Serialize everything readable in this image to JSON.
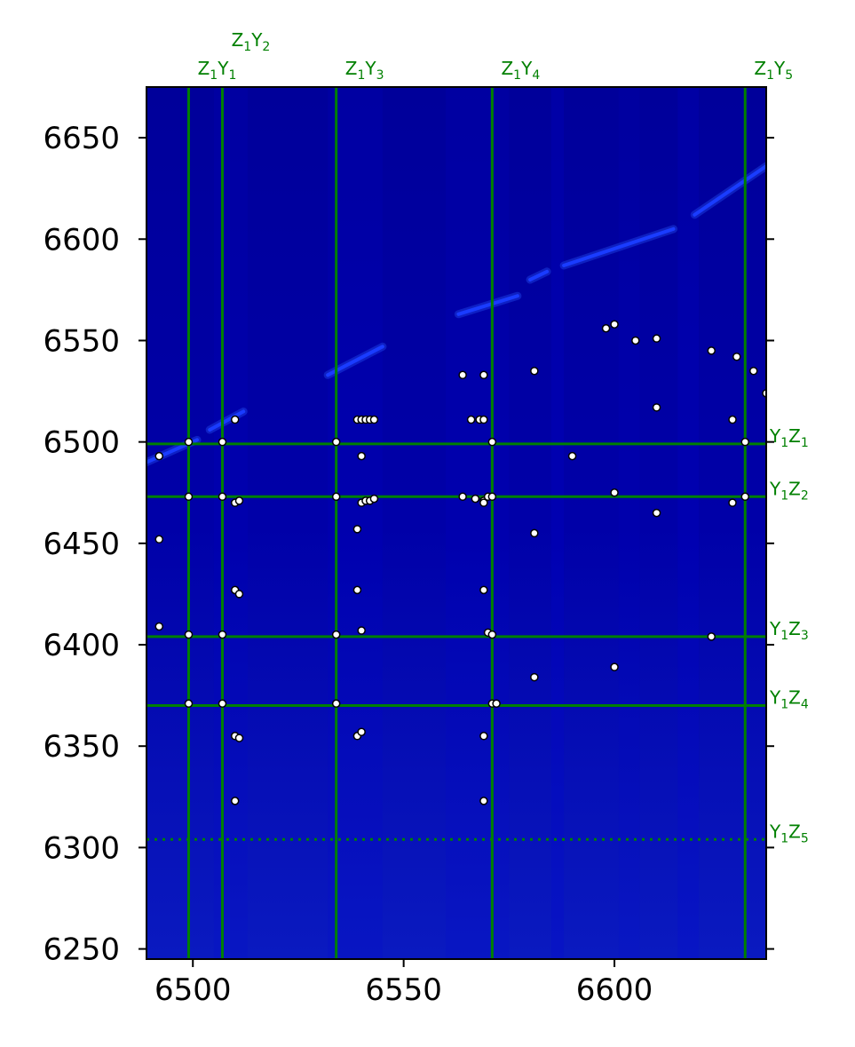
{
  "colors": {
    "background": "#00009a",
    "reference_line": "#008000",
    "point_fill": "#ffffff",
    "point_stroke": "#000000",
    "diagonal": "#1a3cff"
  },
  "chart_data": {
    "type": "heatmap",
    "xlim": [
      6489,
      6636
    ],
    "ylim": [
      6245,
      6675
    ],
    "x_ticks": [
      6500,
      6550,
      6600
    ],
    "y_ticks": [
      6250,
      6300,
      6350,
      6400,
      6450,
      6500,
      6550,
      6600,
      6650
    ],
    "vertical_lines": [
      {
        "label": "Z",
        "sub": "1",
        "label2": "Y",
        "sub2": "1",
        "x": 6499,
        "style": "solid",
        "row": 1
      },
      {
        "label": "Z",
        "sub": "1",
        "label2": "Y",
        "sub2": "2",
        "x": 6507,
        "style": "solid",
        "row": 2
      },
      {
        "label": "Z",
        "sub": "1",
        "label2": "Y",
        "sub2": "3",
        "x": 6534,
        "style": "solid",
        "row": 1
      },
      {
        "label": "Z",
        "sub": "1",
        "label2": "Y",
        "sub2": "4",
        "x": 6571,
        "style": "solid",
        "row": 1
      },
      {
        "label": "Z",
        "sub": "1",
        "label2": "Y",
        "sub2": "5",
        "x": 6631,
        "style": "solid",
        "row": 1
      }
    ],
    "horizontal_lines": [
      {
        "label": "Y",
        "sub": "1",
        "label2": "Z",
        "sub2": "1",
        "y": 6499,
        "style": "solid"
      },
      {
        "label": "Y",
        "sub": "1",
        "label2": "Z",
        "sub2": "2",
        "y": 6473,
        "style": "solid"
      },
      {
        "label": "Y",
        "sub": "1",
        "label2": "Z",
        "sub2": "3",
        "y": 6404,
        "style": "solid"
      },
      {
        "label": "Y",
        "sub": "1",
        "label2": "Z",
        "sub2": "4",
        "y": 6370,
        "style": "solid"
      },
      {
        "label": "Y",
        "sub": "1",
        "label2": "Z",
        "sub2": "5",
        "y": 6304,
        "style": "dotted"
      }
    ],
    "diagonal_segments": [
      [
        6489,
        6490,
        6501,
        6501
      ],
      [
        6504,
        6506,
        6512,
        6515
      ],
      [
        6532,
        6533,
        6545,
        6547
      ],
      [
        6563,
        6563,
        6577,
        6572
      ],
      [
        6580,
        6580,
        6584,
        6584
      ],
      [
        6588,
        6587,
        6614,
        6605
      ],
      [
        6619,
        6612,
        6636,
        6636
      ]
    ],
    "points": [
      [
        6492,
        6493
      ],
      [
        6492,
        6452
      ],
      [
        6492,
        6409
      ],
      [
        6499,
        6500
      ],
      [
        6499,
        6473
      ],
      [
        6499,
        6405
      ],
      [
        6499,
        6371
      ],
      [
        6507,
        6500
      ],
      [
        6507,
        6473
      ],
      [
        6507,
        6405
      ],
      [
        6507,
        6371
      ],
      [
        6510,
        6511
      ],
      [
        6510,
        6470
      ],
      [
        6511,
        6471
      ],
      [
        6510,
        6427
      ],
      [
        6511,
        6425
      ],
      [
        6510,
        6355
      ],
      [
        6511,
        6354
      ],
      [
        6510,
        6323
      ],
      [
        6534,
        6500
      ],
      [
        6534,
        6473
      ],
      [
        6534,
        6405
      ],
      [
        6534,
        6371
      ],
      [
        6539,
        6511
      ],
      [
        6540,
        6511
      ],
      [
        6541,
        6511
      ],
      [
        6542,
        6511
      ],
      [
        6543,
        6511
      ],
      [
        6540,
        6493
      ],
      [
        6540,
        6470
      ],
      [
        6541,
        6471
      ],
      [
        6542,
        6471
      ],
      [
        6543,
        6472
      ],
      [
        6539,
        6457
      ],
      [
        6539,
        6427
      ],
      [
        6540,
        6407
      ],
      [
        6539,
        6355
      ],
      [
        6540,
        6357
      ],
      [
        6564,
        6533
      ],
      [
        6566,
        6511
      ],
      [
        6568,
        6511
      ],
      [
        6569,
        6511
      ],
      [
        6569,
        6533
      ],
      [
        6571,
        6500
      ],
      [
        6564,
        6473
      ],
      [
        6567,
        6472
      ],
      [
        6569,
        6471
      ],
      [
        6569,
        6470
      ],
      [
        6570,
        6473
      ],
      [
        6571,
        6473
      ],
      [
        6569,
        6427
      ],
      [
        6570,
        6406
      ],
      [
        6571,
        6405
      ],
      [
        6571,
        6371
      ],
      [
        6572,
        6371
      ],
      [
        6569,
        6355
      ],
      [
        6569,
        6323
      ],
      [
        6581,
        6535
      ],
      [
        6581,
        6455
      ],
      [
        6581,
        6384
      ],
      [
        6590,
        6493
      ],
      [
        6598,
        6556
      ],
      [
        6600,
        6558
      ],
      [
        6600,
        6475
      ],
      [
        6600,
        6389
      ],
      [
        6605,
        6550
      ],
      [
        6610,
        6551
      ],
      [
        6610,
        6517
      ],
      [
        6610,
        6465
      ],
      [
        6623,
        6545
      ],
      [
        6623,
        6404
      ],
      [
        6628,
        6511
      ],
      [
        6628,
        6470
      ],
      [
        6629,
        6542
      ],
      [
        6631,
        6500
      ],
      [
        6631,
        6473
      ],
      [
        6633,
        6535
      ],
      [
        6636,
        6524
      ]
    ]
  }
}
